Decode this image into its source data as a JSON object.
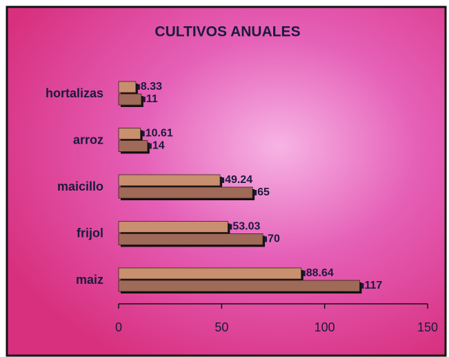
{
  "chart_data": {
    "type": "bar",
    "orientation": "horizontal",
    "title": "CULTIVOS ANUALES",
    "categories": [
      "hortalizas",
      "arroz",
      "maicillo",
      "frijol",
      "maiz"
    ],
    "series": [
      {
        "color": "#c8906f",
        "values": [
          8.33,
          10.61,
          49.24,
          53.03,
          88.64
        ]
      },
      {
        "color": "#a06a58",
        "values": [
          11,
          14,
          65,
          70,
          117
        ]
      }
    ],
    "xlim": [
      0,
      150
    ],
    "xticks": [
      0,
      50,
      100,
      150
    ],
    "grid": false
  }
}
